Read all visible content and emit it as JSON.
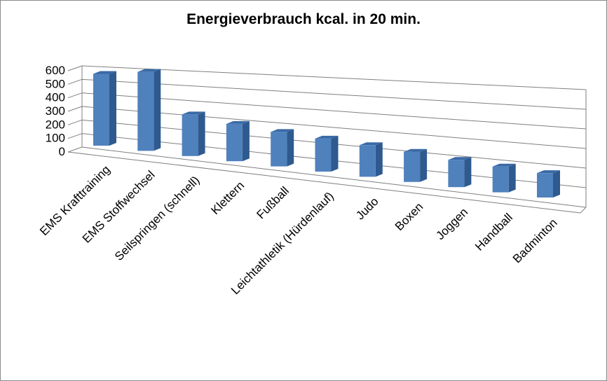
{
  "chart_data": {
    "type": "bar",
    "title": "Energieverbrauch kcal. in 20  min.",
    "categories": [
      "EMS Krafttraining",
      "EMS Stoffwechsel",
      "Seilspringen (schnell)",
      "Klettern",
      "Fußball",
      "Leichtathletik (Hürdenlauf)",
      "Judo",
      "Boxen",
      "Joggen",
      "Handball",
      "Badminton"
    ],
    "values": [
      500,
      550,
      290,
      260,
      240,
      230,
      220,
      210,
      190,
      180,
      170
    ],
    "yticks": [
      "0",
      "100",
      "200",
      "300",
      "400",
      "500",
      "600"
    ],
    "ylim": [
      0,
      600
    ],
    "xlabel": "",
    "ylabel": "",
    "grid": true,
    "three_d": true,
    "colors": {
      "front": "#4f81bd",
      "side": "#2e5a8f",
      "top": "#3a6aa6",
      "grid": "#7f7f7f"
    }
  }
}
